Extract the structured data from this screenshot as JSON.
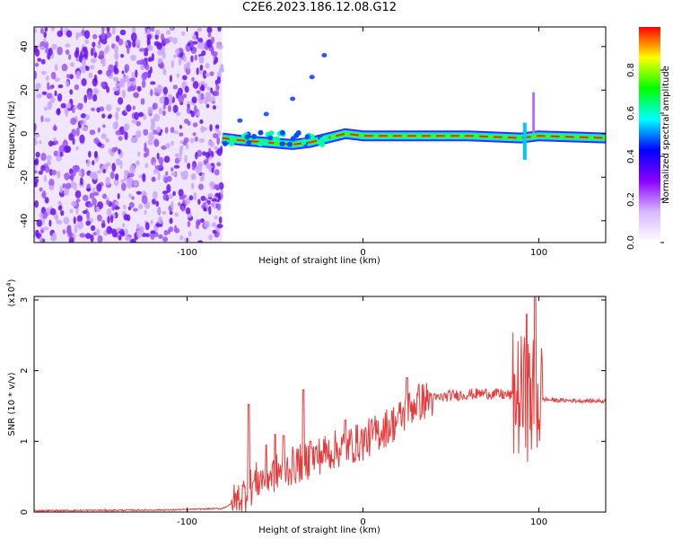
{
  "title": "C2E6.2023.186.12.08.G12",
  "colors": {
    "line": "#e83a3a",
    "speckle": "#7a22f0",
    "axis": "#000000"
  },
  "chart_data": [
    {
      "type": "heatmap",
      "xlabel": "Height of straight line (km)",
      "ylabel": "Frequency (Hz)",
      "xlim": [
        -187,
        138
      ],
      "ylim": [
        -50,
        49
      ],
      "xticks": [
        -100,
        0,
        100
      ],
      "yticks": [
        -40,
        -20,
        0,
        20,
        40
      ],
      "colorbar": {
        "label": "Normalized spectral amplitude",
        "range": [
          0,
          1
        ],
        "ticks": [
          "0.0",
          "0.2",
          "0.4",
          "0.6",
          "0.8"
        ],
        "stops": [
          "#ffffff",
          "#d8b8ff",
          "#8a00ff",
          "#0000ff",
          "#00ffff",
          "#00ff00",
          "#ffff00",
          "#ff0000"
        ]
      },
      "features": {
        "noise_region_x": [
          -187,
          -80
        ],
        "main_track": [
          {
            "x": -80,
            "y": -2
          },
          {
            "x": -70,
            "y": -3
          },
          {
            "x": -55,
            "y": -4
          },
          {
            "x": -40,
            "y": -5
          },
          {
            "x": -30,
            "y": -4
          },
          {
            "x": -20,
            "y": -2
          },
          {
            "x": -10,
            "y": 0
          },
          {
            "x": 0,
            "y": -1
          },
          {
            "x": 20,
            "y": -1
          },
          {
            "x": 60,
            "y": -1
          },
          {
            "x": 90,
            "y": -2
          },
          {
            "x": 100,
            "y": -1
          },
          {
            "x": 138,
            "y": -2
          }
        ],
        "echo_points": [
          {
            "x": -70,
            "y": 6
          },
          {
            "x": -55,
            "y": 9
          },
          {
            "x": -40,
            "y": 16
          },
          {
            "x": -29,
            "y": 26
          },
          {
            "x": -22,
            "y": 36
          }
        ],
        "spike_x": [
          92,
          97
        ]
      }
    },
    {
      "type": "line",
      "xlabel": "Height of straight line (km)",
      "ylabel": "SNR (10 * v/v)",
      "y_multiplier": "(x10",
      "y_multiplier_exp": "4",
      "y_multiplier_close": ")",
      "xlim": [
        -187,
        138
      ],
      "ylim": [
        0,
        3.05
      ],
      "xticks": [
        -100,
        0,
        100
      ],
      "yticks": [
        0,
        1,
        2,
        3
      ],
      "envelope": {
        "x": [
          -187,
          -110,
          -80,
          -72,
          -60,
          -40,
          -20,
          0,
          20,
          30,
          50,
          70,
          85,
          95,
          100,
          110,
          138
        ],
        "y": [
          0.02,
          0.03,
          0.05,
          0.15,
          0.45,
          0.65,
          0.85,
          1.0,
          1.3,
          1.55,
          1.65,
          1.68,
          1.65,
          1.6,
          1.6,
          1.58,
          1.57
        ]
      },
      "peaks": [
        {
          "x": -65,
          "y": 1.52
        },
        {
          "x": -55,
          "y": 0.95
        },
        {
          "x": -50,
          "y": 1.1
        },
        {
          "x": -45,
          "y": 1.08
        },
        {
          "x": -34,
          "y": 1.73
        },
        {
          "x": -30,
          "y": 1.0
        },
        {
          "x": -10,
          "y": 1.3
        },
        {
          "x": 25,
          "y": 1.9
        },
        {
          "x": 93,
          "y": 2.8
        },
        {
          "x": 98,
          "y": 3.05
        }
      ]
    }
  ]
}
